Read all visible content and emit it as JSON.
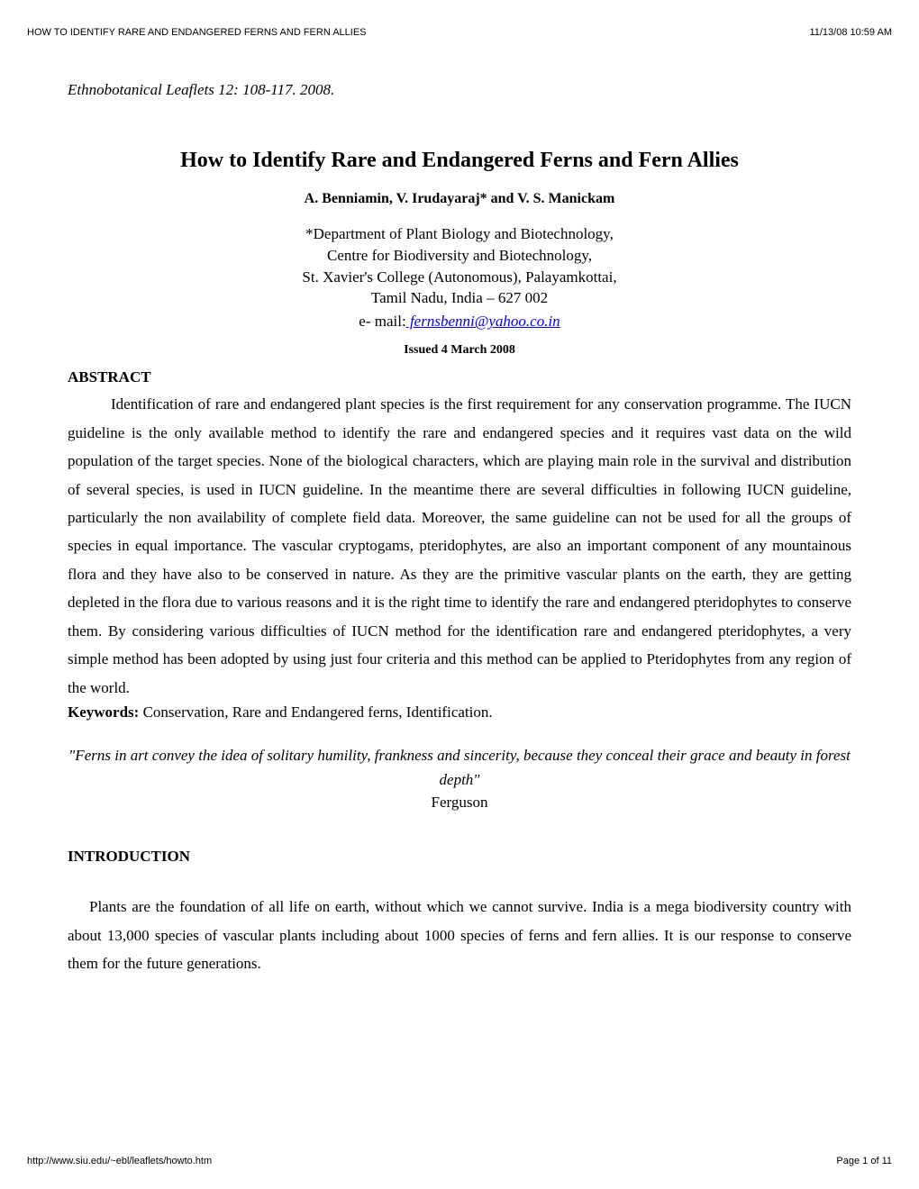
{
  "header": {
    "left": "HOW TO IDENTIFY RARE AND ENDANGERED FERNS AND FERN ALLIES",
    "right": "11/13/08 10:59 AM"
  },
  "footer": {
    "left": "http://www.siu.edu/~ebl/leaflets/howto.htm",
    "right": "Page 1 of 11"
  },
  "citation": "Ethnobotanical Leaflets 12: 108-117. 2008.",
  "title": "How to Identify Rare and Endangered Ferns and Fern Allies",
  "authors": "A. Benniamin, V. Irudayaraj* and V. S. Manickam",
  "affiliation": {
    "line1": "*Department of Plant Biology and Biotechnology,",
    "line2": "Centre for Biodiversity and Biotechnology,",
    "line3": "St. Xavier's College (Autonomous), Palayamkottai,",
    "line4": "Tamil Nadu, India – 627 002"
  },
  "email_label": "e- mail:",
  "email": " fernsbenni@yahoo.co.in",
  "issued": "Issued 4 March 2008",
  "abstract": {
    "heading": "ABSTRACT",
    "text": "Identification of rare and endangered plant species is the first requirement for any conservation programme. The IUCN guideline is the only available method to identify the rare and endangered species and it requires vast data on the wild population of the target species. None of the biological characters, which are playing main role in the survival and distribution of several species, is used in IUCN guideline. In the meantime there are several difficulties in following IUCN guideline, particularly the non availability of complete field data. Moreover, the same guideline can not be used for all the groups of species in equal importance. The vascular cryptogams, pteridophytes, are also an important component of any mountainous flora and they have also to be conserved in nature. As they are the primitive vascular plants on the earth, they are getting depleted in the flora due to various reasons and it is the right time to identify the rare and endangered pteridophytes to conserve them. By considering various difficulties of IUCN method for the identification rare and endangered pteridophytes, a very simple method has been adopted by using just four criteria and this method can be applied to Pteridophytes from any region of the world."
  },
  "keywords": {
    "label": "Keywords: ",
    "text": "Conservation, Rare and Endangered ferns, Identification."
  },
  "quote": {
    "text": "\"Ferns in art convey the idea of solitary humility, frankness and sincerity, because they conceal their grace and beauty in forest depth\"",
    "author": "Ferguson"
  },
  "introduction": {
    "heading": "INTRODUCTION",
    "text": "Plants are the foundation of all life on earth, without which we cannot survive.  India is a mega biodiversity country with about 13,000 species of vascular plants including about 1000 species of ferns and fern allies.  It is our response to conserve them for the future generations."
  }
}
